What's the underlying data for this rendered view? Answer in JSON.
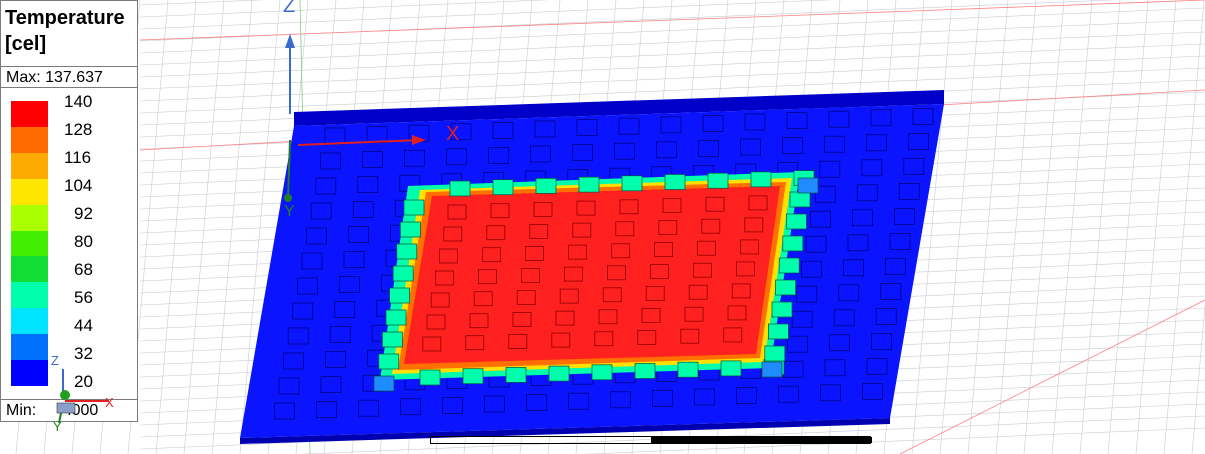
{
  "legend": {
    "title_line1": "Temperature",
    "title_line2": "[cel]",
    "max_label": "Max: 137.637",
    "min_label": "Min:",
    "min_value": ".000",
    "ticks": [
      "140",
      "128",
      "116",
      "104",
      "92",
      "80",
      "68",
      "56",
      "44",
      "32",
      "20"
    ],
    "colors": [
      "#ff0000",
      "#ff6a00",
      "#ffaa00",
      "#ffe600",
      "#aaff00",
      "#44ee00",
      "#11dd33",
      "#00ffaa",
      "#00e5ff",
      "#0070ff",
      "#0000ff"
    ]
  },
  "axes": {
    "x_label": "X",
    "y_label": "Y",
    "z_label": "Z"
  },
  "triad": {
    "z_label": "Z",
    "x_label": "X",
    "y_label": "Y"
  },
  "colors": {
    "board": "#0a14ff",
    "hot": "#ff2020",
    "grid": "#c8ccd8"
  }
}
